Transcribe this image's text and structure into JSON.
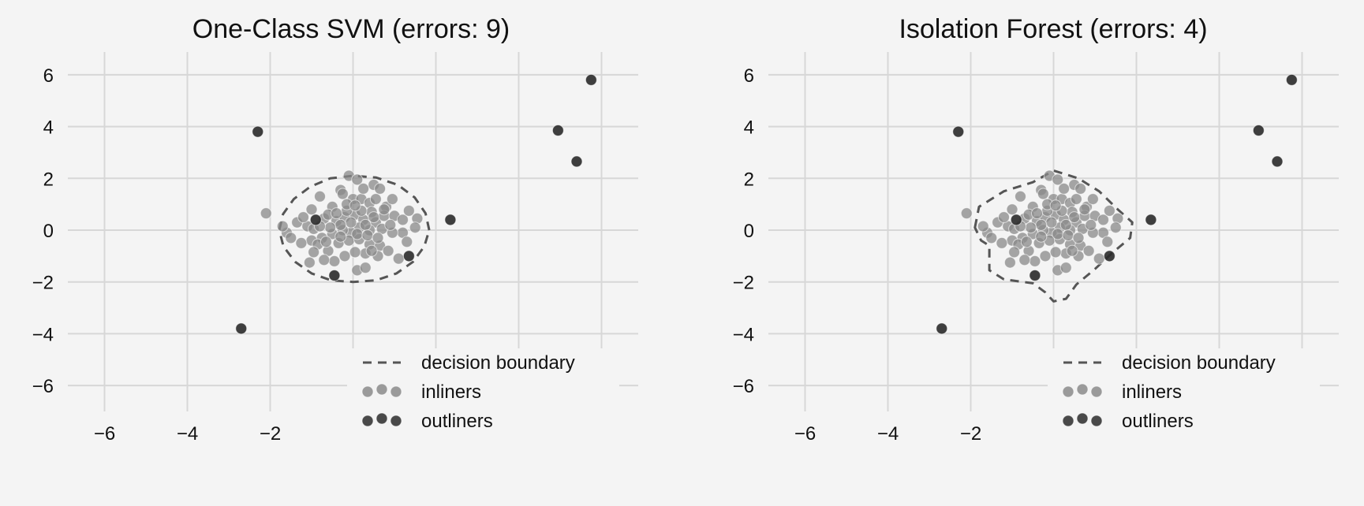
{
  "chart_data": [
    {
      "type": "scatter",
      "title": "One-Class SVM (errors: 9)",
      "xlim": [
        -7,
        7
      ],
      "ylim": [
        -7,
        7
      ],
      "xticks": [
        -6,
        -4,
        -2,
        0,
        2,
        4,
        6
      ],
      "yticks": [
        -6,
        -4,
        -2,
        0,
        2,
        4,
        6
      ],
      "xtick_labels": [
        "−6",
        "−4",
        "−2",
        "0",
        "2",
        "4",
        "6"
      ],
      "ytick_labels": [
        "−6",
        "−4",
        "−2",
        "0",
        "2",
        "4",
        "6"
      ],
      "grid": true,
      "legend": {
        "position": "lower-right",
        "entries": [
          {
            "label": "decision boundary",
            "kind": "dashed-line",
            "color": "#555555"
          },
          {
            "label": "inliners",
            "kind": "markers",
            "color": "#8a8a8a"
          },
          {
            "label": "outliners",
            "kind": "markers",
            "color": "#2a2a2a"
          }
        ]
      },
      "boundary": [
        [
          1.84,
          0.0
        ],
        [
          1.75,
          0.65
        ],
        [
          1.49,
          1.26
        ],
        [
          1.08,
          1.75
        ],
        [
          0.56,
          2.03
        ],
        [
          0.0,
          2.1
        ],
        [
          -0.55,
          2.0
        ],
        [
          -1.03,
          1.68
        ],
        [
          -1.43,
          1.2
        ],
        [
          -1.69,
          0.62
        ],
        [
          -1.78,
          0.0
        ],
        [
          -1.68,
          -0.63
        ],
        [
          -1.4,
          -1.22
        ],
        [
          -1.0,
          -1.67
        ],
        [
          -0.53,
          -1.94
        ],
        [
          0.0,
          -2.0
        ],
        [
          0.55,
          -1.94
        ],
        [
          1.05,
          -1.67
        ],
        [
          1.45,
          -1.22
        ],
        [
          1.72,
          -0.63
        ]
      ],
      "outliers": [
        {
          "x": -2.3,
          "y": 3.8
        },
        {
          "x": -2.7,
          "y": -3.8
        },
        {
          "x": 4.95,
          "y": 3.85
        },
        {
          "x": 5.75,
          "y": 5.8
        },
        {
          "x": 5.4,
          "y": 2.65
        },
        {
          "x": 2.35,
          "y": 0.4
        },
        {
          "x": -0.45,
          "y": -1.75
        },
        {
          "x": 1.35,
          "y": -1.0
        },
        {
          "x": -0.9,
          "y": 0.4
        }
      ]
    },
    {
      "type": "scatter",
      "title": "Isolation Forest (errors: 4)",
      "xlim": [
        -7,
        7
      ],
      "ylim": [
        -7,
        7
      ],
      "xticks": [
        -6,
        -4,
        -2,
        0,
        2,
        4,
        6
      ],
      "yticks": [
        -6,
        -4,
        -2,
        0,
        2,
        4,
        6
      ],
      "xtick_labels": [
        "−6",
        "−4",
        "−2",
        "0",
        "2",
        "4",
        "6"
      ],
      "ytick_labels": [
        "−6",
        "−4",
        "−2",
        "0",
        "2",
        "4",
        "6"
      ],
      "grid": true,
      "legend": {
        "position": "lower-right",
        "entries": [
          {
            "label": "decision boundary",
            "kind": "dashed-line",
            "color": "#555555"
          },
          {
            "label": "inliners",
            "kind": "markers",
            "color": "#8a8a8a"
          },
          {
            "label": "outliners",
            "kind": "markers",
            "color": "#2a2a2a"
          }
        ]
      },
      "boundary": [
        [
          -1.9,
          0.1
        ],
        [
          -1.8,
          0.9
        ],
        [
          -1.2,
          1.5
        ],
        [
          -0.5,
          1.85
        ],
        [
          0.0,
          2.3
        ],
        [
          0.6,
          2.0
        ],
        [
          1.1,
          1.5
        ],
        [
          1.55,
          0.8
        ],
        [
          1.9,
          0.3
        ],
        [
          1.85,
          -0.3
        ],
        [
          1.4,
          -0.9
        ],
        [
          1.0,
          -1.5
        ],
        [
          0.55,
          -2.1
        ],
        [
          0.3,
          -2.65
        ],
        [
          0.0,
          -2.75
        ],
        [
          -0.2,
          -2.4
        ],
        [
          -0.5,
          -2.05
        ],
        [
          -1.2,
          -1.9
        ],
        [
          -1.55,
          -1.55
        ],
        [
          -1.55,
          -0.6
        ],
        [
          -1.75,
          -0.4
        ]
      ],
      "outliers": [
        {
          "x": -2.3,
          "y": 3.8
        },
        {
          "x": -2.7,
          "y": -3.8
        },
        {
          "x": 4.95,
          "y": 3.85
        },
        {
          "x": 5.75,
          "y": 5.8
        },
        {
          "x": 5.4,
          "y": 2.65
        },
        {
          "x": 2.35,
          "y": 0.4
        },
        {
          "x": -0.45,
          "y": -1.75
        },
        {
          "x": 1.35,
          "y": -1.0
        },
        {
          "x": -0.9,
          "y": 0.4
        }
      ]
    }
  ],
  "shared_inliers": [
    [
      -0.1,
      2.1
    ],
    [
      0.1,
      1.95
    ],
    [
      0.5,
      1.75
    ],
    [
      0.65,
      1.6
    ],
    [
      -0.8,
      1.3
    ],
    [
      -0.3,
      1.55
    ],
    [
      0.0,
      1.2
    ],
    [
      0.2,
      1.2
    ],
    [
      0.4,
      1.05
    ],
    [
      -0.5,
      0.9
    ],
    [
      0.8,
      0.9
    ],
    [
      -2.1,
      0.65
    ],
    [
      -1.35,
      0.3
    ],
    [
      -1.1,
      0.15
    ],
    [
      -0.95,
      0.05
    ],
    [
      -0.7,
      0.45
    ],
    [
      -0.6,
      0.6
    ],
    [
      -0.4,
      0.35
    ],
    [
      -0.2,
      0.5
    ],
    [
      0.05,
      0.6
    ],
    [
      0.25,
      0.4
    ],
    [
      0.45,
      0.7
    ],
    [
      0.55,
      0.3
    ],
    [
      0.75,
      0.55
    ],
    [
      1.0,
      0.55
    ],
    [
      1.2,
      0.4
    ],
    [
      1.55,
      0.45
    ],
    [
      1.5,
      0.1
    ],
    [
      1.2,
      -0.1
    ],
    [
      0.95,
      -0.1
    ],
    [
      0.7,
      0.05
    ],
    [
      0.4,
      0.0
    ],
    [
      0.15,
      0.1
    ],
    [
      -0.05,
      -0.1
    ],
    [
      -0.25,
      0.0
    ],
    [
      -0.5,
      -0.15
    ],
    [
      -0.75,
      -0.3
    ],
    [
      -1.0,
      -0.4
    ],
    [
      -1.25,
      -0.5
    ],
    [
      -1.6,
      -0.1
    ],
    [
      -1.7,
      0.15
    ],
    [
      -1.5,
      -0.3
    ],
    [
      -0.85,
      -0.55
    ],
    [
      -0.6,
      -0.8
    ],
    [
      -0.35,
      -0.5
    ],
    [
      -0.1,
      -0.4
    ],
    [
      0.15,
      -0.35
    ],
    [
      0.4,
      -0.55
    ],
    [
      0.65,
      -0.6
    ],
    [
      0.85,
      -0.8
    ],
    [
      1.1,
      -1.1
    ],
    [
      0.6,
      -1.0
    ],
    [
      0.3,
      -0.9
    ],
    [
      0.05,
      -0.85
    ],
    [
      -0.2,
      -1.0
    ],
    [
      -0.45,
      -1.2
    ],
    [
      -0.7,
      -1.15
    ],
    [
      -1.05,
      -1.25
    ],
    [
      0.1,
      -1.55
    ],
    [
      0.3,
      -1.45
    ],
    [
      -0.05,
      0.3
    ],
    [
      0.3,
      0.2
    ],
    [
      -0.3,
      0.2
    ],
    [
      0.1,
      -0.15
    ],
    [
      0.5,
      0.5
    ],
    [
      -0.15,
      0.75
    ],
    [
      0.35,
      -0.2
    ],
    [
      -0.55,
      0.1
    ],
    [
      0.6,
      -0.3
    ],
    [
      -0.8,
      0.15
    ],
    [
      0.9,
      0.2
    ],
    [
      -0.3,
      -0.25
    ],
    [
      0.2,
      0.75
    ],
    [
      -0.4,
      0.65
    ],
    [
      0.75,
      0.8
    ],
    [
      1.3,
      -0.45
    ],
    [
      -1.2,
      0.5
    ],
    [
      -1.0,
      0.8
    ],
    [
      0.95,
      1.2
    ],
    [
      -0.15,
      1.0
    ],
    [
      0.55,
      1.2
    ],
    [
      -0.65,
      -0.45
    ],
    [
      0.45,
      -0.8
    ],
    [
      -0.95,
      -0.85
    ],
    [
      1.35,
      0.75
    ],
    [
      0.05,
      0.95
    ],
    [
      -0.25,
      1.4
    ],
    [
      0.25,
      1.6
    ]
  ],
  "colors": {
    "background": "#f4f4f4",
    "grid": "#d7d7d7",
    "inlier": "#8a8a8a",
    "outlier": "#2a2a2a",
    "boundary": "#555555"
  }
}
